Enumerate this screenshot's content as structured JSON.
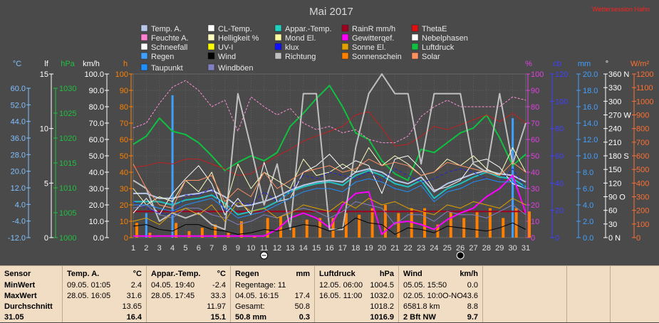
{
  "page": {
    "title": "Mai 2017",
    "notice": "Wettersession Hahn"
  },
  "legend": [
    {
      "label": "Temp. A.",
      "color": "#b8c8e8",
      "icon": "swatch"
    },
    {
      "label": "CL-Temp.",
      "color": "#ffffff",
      "icon": "swatch"
    },
    {
      "label": "Appar.-Temp.",
      "color": "#20d0c0",
      "icon": "swatch"
    },
    {
      "label": "RainR mm/h",
      "color": "#a00020",
      "icon": "swatch"
    },
    {
      "label": "ThetaE",
      "color": "#e01010",
      "icon": "swatch"
    },
    {
      "label": "Feuchte A.",
      "color": "#ff80d0",
      "icon": "swatch"
    },
    {
      "label": "Helligkeit %",
      "color": "#ffffc0",
      "icon": "swatch"
    },
    {
      "label": "Mond El.",
      "color": "#ffffa0",
      "icon": "swatch"
    },
    {
      "label": "Gewitterqef.",
      "color": "#ff00ff",
      "icon": "swatch"
    },
    {
      "label": "Nebelphasen",
      "color": "#ffffff",
      "icon": "swatch"
    },
    {
      "label": "Schneefall",
      "color": "#ffffff",
      "icon": "swatch"
    },
    {
      "label": "UV-I",
      "color": "#ffff00",
      "icon": "swatch"
    },
    {
      "label": "klux",
      "color": "#1010ff",
      "icon": "swatch"
    },
    {
      "label": "Sonne El.",
      "color": "#e0a000",
      "icon": "swatch"
    },
    {
      "label": "Luftdruck",
      "color": "#10c040",
      "icon": "swatch"
    },
    {
      "label": "Regen",
      "color": "#40a0ff",
      "icon": "swatch"
    },
    {
      "label": "Wind",
      "color": "#000000",
      "icon": "swatch"
    },
    {
      "label": "Richtung",
      "color": "#c0c0c0",
      "icon": "swatch"
    },
    {
      "label": "Sonnenschein",
      "color": "#ff8000",
      "icon": "swatch"
    },
    {
      "label": "Solar",
      "color": "#ff9060",
      "icon": "swatch"
    },
    {
      "label": "Taupunkt",
      "color": "#2090ff",
      "icon": "swatch"
    },
    {
      "label": "Windböen",
      "color": "#8080c0",
      "icon": "swatch"
    }
  ],
  "axes": {
    "units": {
      "temp": "°C",
      "lf": "lf",
      "hpa": "hPa",
      "kmh": "km/h",
      "h": "h",
      "pct": "%",
      "cb": "cb",
      "mm": "mm",
      "deg": "°",
      "wm2": "W/m²"
    },
    "temp": {
      "ticks": [
        "60.0",
        "52.0",
        "44.0",
        "36.0",
        "28.0",
        "20.0",
        "12.0",
        "4.0",
        "-4.0",
        "-12.0"
      ],
      "min": -12,
      "max": 60,
      "color": "#80c0ff"
    },
    "lf": {
      "ticks": [
        "15",
        "10",
        "5",
        "0"
      ],
      "color": "#ffffff"
    },
    "hpa": {
      "ticks": [
        "1030",
        "1025",
        "1020",
        "1015",
        "1010",
        "1005",
        "1000"
      ],
      "color": "#20c040"
    },
    "kmh": {
      "ticks": [
        "100.0",
        "90.0",
        "80.0",
        "70.0",
        "60.0",
        "50.0",
        "40.0",
        "30.0",
        "20.0",
        "10.0",
        "0.0"
      ],
      "color": "#ffffff"
    },
    "h": {
      "ticks": [
        "100",
        "90",
        "80",
        "70",
        "60",
        "50",
        "40",
        "30",
        "20",
        "10",
        "0"
      ],
      "color": "#ff8000"
    },
    "pct": {
      "ticks": [
        "100",
        "90",
        "80",
        "70",
        "60",
        "50",
        "40",
        "30",
        "20",
        "10",
        "0"
      ],
      "color": "#e040e0"
    },
    "cb": {
      "ticks": [
        "120",
        "100",
        "80",
        "60",
        "40",
        "20",
        "0"
      ],
      "color": "#4040ff"
    },
    "mm": {
      "ticks": [
        "20.0",
        "18.0",
        "16.0",
        "14.0",
        "12.0",
        "10.0",
        "8.0",
        "6.0",
        "4.0",
        "2.0",
        "0.0"
      ],
      "color": "#40a0ff"
    },
    "deg": {
      "ticks": [
        "360 N",
        "330",
        "300",
        "270 W",
        "240",
        "210",
        "180 S",
        "150",
        "120",
        "90 O",
        "60",
        "30",
        "0 N"
      ],
      "color": "#ffffff"
    },
    "wm2": {
      "ticks": [
        "1200",
        "1100",
        "1000",
        "900",
        "800",
        "700",
        "600",
        "500",
        "400",
        "300",
        "200",
        "100",
        "0"
      ],
      "color": "#ff7030"
    }
  },
  "chart_data": {
    "type": "line",
    "title": "Mai 2017",
    "x": [
      1,
      2,
      3,
      4,
      5,
      6,
      7,
      8,
      9,
      10,
      11,
      12,
      13,
      14,
      15,
      16,
      17,
      18,
      19,
      20,
      21,
      22,
      23,
      24,
      25,
      26,
      27,
      28,
      29,
      30,
      31
    ],
    "xlabel": "",
    "ylim": [
      0,
      100
    ],
    "grid": true,
    "series": [
      {
        "name": "Luftdruck",
        "color": "#10c040",
        "width": 2,
        "values": [
          57,
          62,
          73,
          65,
          63,
          58,
          50,
          41,
          46,
          50,
          47,
          52,
          68,
          76,
          85,
          93,
          80,
          64,
          60,
          47,
          39,
          35,
          54,
          52,
          58,
          64,
          67,
          75,
          61,
          44,
          51
        ]
      },
      {
        "name": "ThetaE",
        "color": "#c02020",
        "width": 1,
        "values": [
          43,
          44,
          46,
          45,
          48,
          48,
          45,
          42,
          38,
          39,
          45,
          50,
          54,
          59,
          62,
          65,
          68,
          75,
          77,
          67,
          56,
          57,
          62,
          68,
          66,
          69,
          72,
          75,
          71,
          76,
          70
        ]
      },
      {
        "name": "Temp. A.",
        "color": "#b8c8e8",
        "width": 2,
        "values": [
          27,
          27,
          24,
          24,
          26,
          27,
          29,
          25,
          19,
          20,
          22,
          25,
          29,
          32,
          34,
          35,
          34,
          40,
          42,
          40,
          35,
          33,
          37,
          28,
          33,
          36,
          39,
          41,
          39,
          38,
          34
        ]
      },
      {
        "name": "Appar.-Temp.",
        "color": "#20c0c0",
        "width": 2,
        "values": [
          22,
          22,
          22,
          20,
          23,
          24,
          26,
          21,
          14,
          16,
          18,
          22,
          28,
          31,
          33,
          34,
          32,
          38,
          41,
          38,
          33,
          31,
          35,
          24,
          30,
          33,
          37,
          40,
          37,
          36,
          31
        ]
      },
      {
        "name": "CL-Temp.",
        "color": "#ffffff",
        "width": 1,
        "values": [
          15,
          24,
          14,
          27,
          36,
          44,
          33,
          14,
          24,
          14,
          46,
          22,
          24,
          40,
          44,
          51,
          42,
          47,
          44,
          27,
          48,
          50,
          42,
          29,
          31,
          35,
          46,
          48,
          43,
          33,
          30
        ]
      },
      {
        "name": "Feuchte A.",
        "color": "#ff90d8",
        "width": 1,
        "dash": "3,2",
        "values": [
          67,
          70,
          82,
          92,
          96,
          90,
          80,
          84,
          65,
          86,
          80,
          75,
          79,
          70,
          66,
          68,
          64,
          66,
          60,
          58,
          58,
          62,
          74,
          80,
          84,
          80,
          80,
          80,
          80,
          86,
          84
        ]
      },
      {
        "name": "Gewitterqef.",
        "color": "#ff00ff",
        "width": 2,
        "values": [
          1,
          1,
          1,
          1,
          1,
          1,
          1,
          1,
          1,
          1,
          1,
          5,
          12,
          15,
          12,
          6,
          20,
          27,
          28,
          2,
          9,
          10,
          8,
          5,
          11,
          15,
          18,
          25,
          30,
          38,
          15
        ]
      },
      {
        "name": "Richtung",
        "color": "#c0c0c0",
        "width": 2,
        "values": [
          35,
          30,
          10,
          15,
          12,
          15,
          8,
          5,
          88,
          55,
          20,
          45,
          5,
          88,
          88,
          5,
          5,
          55,
          88,
          100,
          88,
          88,
          45,
          88,
          88,
          88,
          45,
          40,
          88,
          45,
          70
        ]
      },
      {
        "name": "Wind",
        "color": "#000000",
        "width": 1,
        "values": [
          7,
          8,
          5,
          4,
          8,
          8,
          5,
          4,
          2,
          3,
          5,
          4,
          6,
          8,
          7,
          4,
          6,
          12,
          9,
          8,
          2,
          6,
          5,
          3,
          7,
          6,
          5,
          4,
          6,
          9,
          5
        ]
      },
      {
        "name": "Windböen",
        "color": "#8080c0",
        "width": 1,
        "values": [
          18,
          20,
          14,
          12,
          18,
          18,
          14,
          12,
          8,
          10,
          14,
          12,
          16,
          18,
          16,
          12,
          16,
          22,
          20,
          18,
          8,
          14,
          14,
          10,
          16,
          14,
          14,
          12,
          16,
          20,
          14
        ]
      },
      {
        "name": "Helligkeit %",
        "color": "#ffffc0",
        "width": 1,
        "values": [
          30,
          20,
          25,
          22,
          35,
          28,
          40,
          18,
          45,
          30,
          40,
          35,
          30,
          48,
          38,
          40,
          45,
          40,
          55,
          44,
          50,
          45,
          38,
          40,
          48,
          44,
          50,
          42,
          38,
          55,
          40
        ]
      },
      {
        "name": "Sonne El.",
        "color": "#e0a000",
        "width": 1,
        "values": [
          10,
          12,
          8,
          15,
          18,
          14,
          20,
          10,
          22,
          16,
          18,
          12,
          15,
          20,
          18,
          16,
          22,
          18,
          24,
          20,
          22,
          18,
          16,
          14,
          20,
          18,
          22,
          20,
          18,
          24,
          20
        ]
      },
      {
        "name": "klux",
        "color": "#2020e0",
        "width": 1,
        "dash": "4,3",
        "values": [
          22,
          18,
          15,
          14,
          26,
          26,
          30,
          16,
          22,
          20,
          28,
          22,
          28,
          38,
          36,
          40,
          38,
          36,
          40,
          35,
          42,
          38,
          34,
          36,
          40,
          42,
          40,
          36,
          34,
          42,
          30
        ]
      },
      {
        "name": "Solar",
        "color": "#ff9060",
        "width": 1,
        "values": [
          45,
          30,
          20,
          18,
          35,
          35,
          38,
          22,
          30,
          25,
          40,
          30,
          35,
          40,
          42,
          44,
          40,
          42,
          48,
          44,
          46,
          44,
          38,
          40,
          46,
          44,
          42,
          40,
          38,
          46,
          40
        ]
      },
      {
        "name": "Taupunkt",
        "color": "#2090ff",
        "width": 1,
        "values": [
          20,
          20,
          18,
          16,
          20,
          22,
          24,
          18,
          12,
          14,
          16,
          20,
          24,
          28,
          30,
          30,
          28,
          34,
          36,
          34,
          30,
          28,
          32,
          22,
          28,
          30,
          34,
          36,
          34,
          34,
          30
        ]
      }
    ],
    "bars": {
      "Sonnenschein": {
        "color": "#ff8000",
        "values": [
          9,
          3,
          0,
          9,
          4,
          6,
          8,
          3,
          10,
          1,
          12,
          13,
          6,
          11,
          12,
          12,
          15,
          14,
          18,
          20,
          15,
          18,
          18,
          8,
          16,
          12,
          16,
          18,
          12,
          18,
          16
        ]
      },
      "Regen": {
        "color": "#40a0ff",
        "values": [
          0,
          15,
          0,
          87,
          0,
          0,
          0,
          0,
          0,
          0,
          0,
          0,
          0,
          0,
          0,
          0,
          0,
          0,
          0,
          0,
          0,
          0,
          0,
          0,
          0,
          0,
          0,
          0,
          0,
          73,
          0
        ]
      },
      "Nebelphasen": {
        "color": "#c0c0c0",
        "values": [
          0,
          0,
          0,
          0,
          0,
          0,
          0,
          0,
          0,
          0,
          0,
          0,
          0,
          0,
          0,
          0,
          0,
          0,
          0,
          0,
          0,
          0,
          0,
          0,
          0,
          0,
          0,
          0,
          0,
          0,
          0
        ]
      }
    },
    "threshold": {
      "name": "RainR mm/h",
      "value": 16,
      "color": "#a00020"
    }
  },
  "summary": {
    "sensor": {
      "title": "Sensor",
      "rows": [
        "MinWert",
        "MaxWert",
        "Durchschnitt",
        "31.05"
      ]
    },
    "temp": {
      "title": "Temp. A.",
      "unit": "°C",
      "rows": [
        [
          "09.05.  01:05",
          "2.4"
        ],
        [
          "28.05.  16:05",
          "31.6"
        ],
        [
          "",
          "13.65"
        ],
        [
          "",
          "16.4"
        ]
      ]
    },
    "appar": {
      "title": "Appar.-Temp.",
      "unit": "°C",
      "rows": [
        [
          "04.05.  19:40",
          "-2.4"
        ],
        [
          "28.05.  17:45",
          "33.3"
        ],
        [
          "",
          "11.97"
        ],
        [
          "",
          "15.1"
        ]
      ]
    },
    "regen": {
      "title": "Regen",
      "unit": "mm",
      "rows": [
        [
          "Regentage: 11",
          ""
        ],
        [
          "04.05.  16:15",
          "17.4"
        ],
        [
          "Gesamt:",
          "50.8"
        ],
        [
          "50.8 mm",
          "0.3"
        ]
      ]
    },
    "luftdruck": {
      "title": "Luftdruck",
      "unit": "hPa",
      "rows": [
        [
          "12.05.  06:00",
          "1004.5"
        ],
        [
          "16.05.  11:00",
          "1032.0"
        ],
        [
          "",
          "1018.2"
        ],
        [
          "",
          "1016.9"
        ]
      ]
    },
    "wind": {
      "title": "Wind",
      "unit": "km/h",
      "rows": [
        [
          "05.05.  15:50",
          "0.0"
        ],
        [
          "02.05.  10:0O-NO",
          "43.6"
        ],
        [
          "6581.8 km",
          "8.8"
        ],
        [
          "2 Bft NW",
          "9.7"
        ]
      ]
    }
  }
}
